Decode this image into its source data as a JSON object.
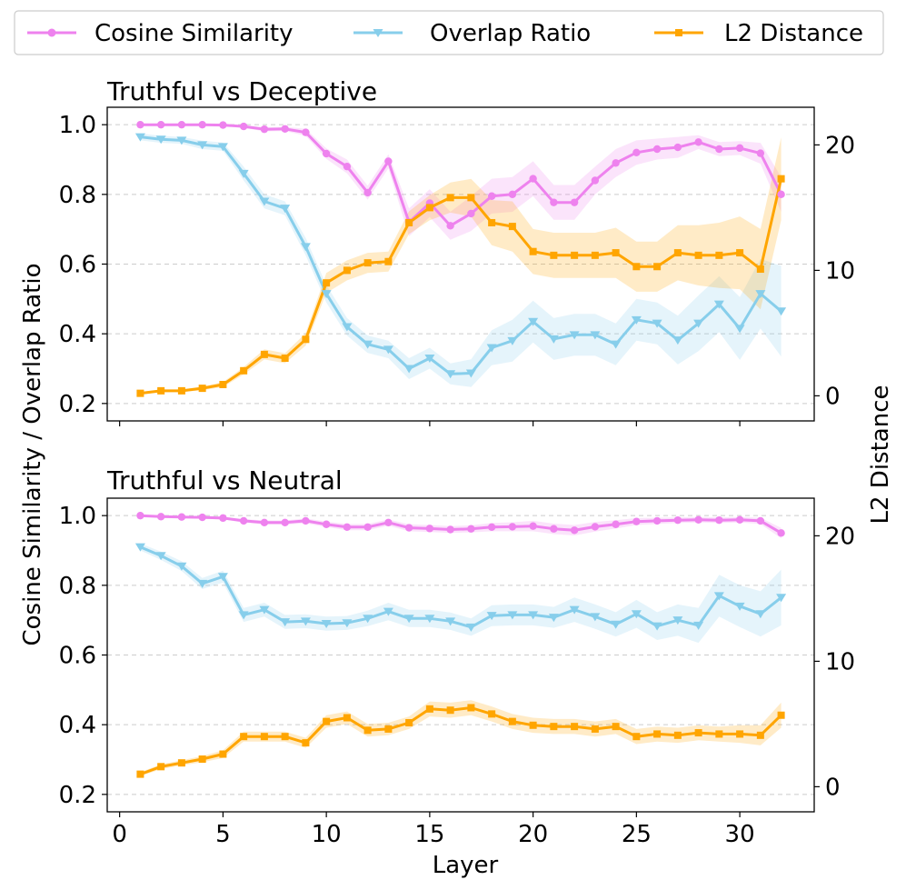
{
  "chart_data": {
    "shared": {
      "xlabel": "Layer",
      "ylabel_left": "Cosine Similarity / Overlap Ratio",
      "ylabel_right": "L2 Distance",
      "xlim": [
        -0.6,
        33.6
      ],
      "xticks": [
        0,
        5,
        10,
        15,
        20,
        25,
        30
      ],
      "legend": {
        "placement": "top-center",
        "entries": [
          {
            "name": "Cosine Similarity",
            "color": "#ee82ee",
            "marker": "circle"
          },
          {
            "name": "Overlap Ratio",
            "color": "#87ceeb",
            "marker": "triangle-down"
          },
          {
            "name": "L2 Distance",
            "color": "#ffa500",
            "marker": "square"
          }
        ]
      }
    },
    "panels": [
      {
        "title": "Truthful vs Deceptive",
        "type": "line",
        "ylim_left": [
          0.15,
          1.05
        ],
        "yticks_left": [
          0.2,
          0.4,
          0.6,
          0.8,
          1.0
        ],
        "ylim_right": [
          -2,
          23
        ],
        "yticks_right": [
          0,
          10,
          20
        ],
        "grid": "horizontal-dashed",
        "x": [
          1,
          2,
          3,
          4,
          5,
          6,
          7,
          8,
          9,
          10,
          11,
          12,
          13,
          14,
          15,
          16,
          17,
          18,
          19,
          20,
          21,
          22,
          23,
          24,
          25,
          26,
          27,
          28,
          29,
          30,
          31,
          32
        ],
        "series": [
          {
            "name": "Cosine Similarity",
            "axis": "left",
            "color": "#ee82ee",
            "marker": "circle",
            "values": [
              1.0,
              1.0,
              1.0,
              1.0,
              0.999,
              0.995,
              0.987,
              0.988,
              0.978,
              0.917,
              0.88,
              0.805,
              0.895,
              0.72,
              0.775,
              0.71,
              0.745,
              0.795,
              0.8,
              0.845,
              0.777,
              0.777,
              0.84,
              0.89,
              0.92,
              0.93,
              0.935,
              0.95,
              0.93,
              0.933,
              0.918,
              0.8
            ],
            "band": [
              0.0,
              0.0,
              0.0,
              0.0,
              0.002,
              0.004,
              0.006,
              0.006,
              0.01,
              0.015,
              0.02,
              0.02,
              0.02,
              0.04,
              0.04,
              0.04,
              0.05,
              0.05,
              0.05,
              0.05,
              0.05,
              0.05,
              0.04,
              0.04,
              0.035,
              0.03,
              0.03,
              0.02,
              0.02,
              0.02,
              0.03,
              0.05
            ]
          },
          {
            "name": "Overlap Ratio",
            "axis": "left",
            "color": "#87ceeb",
            "marker": "triangle-down",
            "values": [
              0.965,
              0.958,
              0.955,
              0.942,
              0.937,
              0.86,
              0.78,
              0.76,
              0.65,
              0.515,
              0.42,
              0.37,
              0.355,
              0.3,
              0.33,
              0.285,
              0.287,
              0.36,
              0.38,
              0.435,
              0.385,
              0.397,
              0.397,
              0.37,
              0.44,
              0.43,
              0.382,
              0.43,
              0.485,
              0.415,
              0.515,
              0.465
            ],
            "band": [
              0.01,
              0.01,
              0.01,
              0.012,
              0.012,
              0.02,
              0.02,
              0.02,
              0.025,
              0.025,
              0.025,
              0.025,
              0.025,
              0.03,
              0.03,
              0.03,
              0.04,
              0.05,
              0.06,
              0.06,
              0.06,
              0.06,
              0.06,
              0.06,
              0.06,
              0.06,
              0.07,
              0.08,
              0.08,
              0.09,
              0.1,
              0.13
            ]
          },
          {
            "name": "L2 Distance",
            "axis": "right",
            "color": "#ffa500",
            "marker": "square",
            "values": [
              0.2,
              0.4,
              0.4,
              0.6,
              0.9,
              2.0,
              3.3,
              3.0,
              4.5,
              9.0,
              10.0,
              10.6,
              10.7,
              13.8,
              15.0,
              15.8,
              15.8,
              13.8,
              13.5,
              11.5,
              11.2,
              11.2,
              11.2,
              11.4,
              10.3,
              10.3,
              11.4,
              11.2,
              11.2,
              11.4,
              10.1,
              17.3
            ],
            "band": [
              0.1,
              0.1,
              0.1,
              0.15,
              0.2,
              0.3,
              0.4,
              0.4,
              0.5,
              0.8,
              0.8,
              0.8,
              0.8,
              0.9,
              1.0,
              1.2,
              1.5,
              1.8,
              2.0,
              1.8,
              1.8,
              1.8,
              1.8,
              2.0,
              2.0,
              2.0,
              2.2,
              2.4,
              2.6,
              2.9,
              3.2,
              3.3
            ]
          }
        ]
      },
      {
        "title": "Truthful vs Neutral",
        "type": "line",
        "ylim_left": [
          0.15,
          1.05
        ],
        "yticks_left": [
          0.2,
          0.4,
          0.6,
          0.8,
          1.0
        ],
        "ylim_right": [
          -2,
          23
        ],
        "yticks_right": [
          0,
          10,
          20
        ],
        "grid": "horizontal-dashed",
        "x": [
          1,
          2,
          3,
          4,
          5,
          6,
          7,
          8,
          9,
          10,
          11,
          12,
          13,
          14,
          15,
          16,
          17,
          18,
          19,
          20,
          21,
          22,
          23,
          24,
          25,
          26,
          27,
          28,
          29,
          30,
          31,
          32
        ],
        "series": [
          {
            "name": "Cosine Similarity",
            "axis": "left",
            "color": "#ee82ee",
            "marker": "circle",
            "values": [
              1.0,
              0.997,
              0.996,
              0.995,
              0.993,
              0.985,
              0.98,
              0.98,
              0.985,
              0.975,
              0.967,
              0.967,
              0.98,
              0.965,
              0.963,
              0.96,
              0.962,
              0.967,
              0.968,
              0.97,
              0.962,
              0.958,
              0.968,
              0.975,
              0.983,
              0.985,
              0.987,
              0.988,
              0.987,
              0.988,
              0.985,
              0.95
            ],
            "band": [
              0.002,
              0.003,
              0.003,
              0.004,
              0.004,
              0.005,
              0.006,
              0.006,
              0.007,
              0.008,
              0.009,
              0.009,
              0.009,
              0.01,
              0.01,
              0.01,
              0.01,
              0.012,
              0.013,
              0.015,
              0.015,
              0.015,
              0.014,
              0.012,
              0.01,
              0.009,
              0.008,
              0.008,
              0.008,
              0.008,
              0.009,
              0.015
            ]
          },
          {
            "name": "Overlap Ratio",
            "axis": "left",
            "color": "#87ceeb",
            "marker": "triangle-down",
            "values": [
              0.91,
              0.885,
              0.855,
              0.805,
              0.825,
              0.715,
              0.73,
              0.695,
              0.697,
              0.69,
              0.692,
              0.705,
              0.725,
              0.705,
              0.705,
              0.697,
              0.68,
              0.713,
              0.715,
              0.715,
              0.708,
              0.73,
              0.71,
              0.688,
              0.718,
              0.683,
              0.7,
              0.685,
              0.77,
              0.74,
              0.718,
              0.765
            ],
            "band": [
              0.01,
              0.012,
              0.014,
              0.016,
              0.017,
              0.02,
              0.02,
              0.02,
              0.02,
              0.02,
              0.02,
              0.022,
              0.025,
              0.025,
              0.025,
              0.025,
              0.025,
              0.03,
              0.03,
              0.03,
              0.03,
              0.035,
              0.035,
              0.035,
              0.04,
              0.04,
              0.045,
              0.05,
              0.06,
              0.06,
              0.065,
              0.08
            ]
          },
          {
            "name": "L2 Distance",
            "axis": "right",
            "color": "#ffa500",
            "marker": "square",
            "values": [
              1.0,
              1.6,
              1.9,
              2.2,
              2.6,
              4.0,
              4.0,
              4.0,
              3.5,
              5.2,
              5.5,
              4.5,
              4.6,
              5.1,
              6.2,
              6.1,
              6.3,
              5.8,
              5.2,
              4.9,
              4.8,
              4.8,
              4.6,
              4.8,
              4.0,
              4.2,
              4.1,
              4.3,
              4.2,
              4.2,
              4.1,
              5.7
            ],
            "band": [
              0.15,
              0.2,
              0.2,
              0.25,
              0.3,
              0.4,
              0.4,
              0.4,
              0.4,
              0.5,
              0.5,
              0.5,
              0.5,
              0.5,
              0.6,
              0.6,
              0.6,
              0.6,
              0.6,
              0.6,
              0.6,
              0.6,
              0.6,
              0.6,
              0.6,
              0.6,
              0.6,
              0.6,
              0.6,
              0.7,
              0.8,
              1.0
            ]
          }
        ]
      }
    ]
  }
}
